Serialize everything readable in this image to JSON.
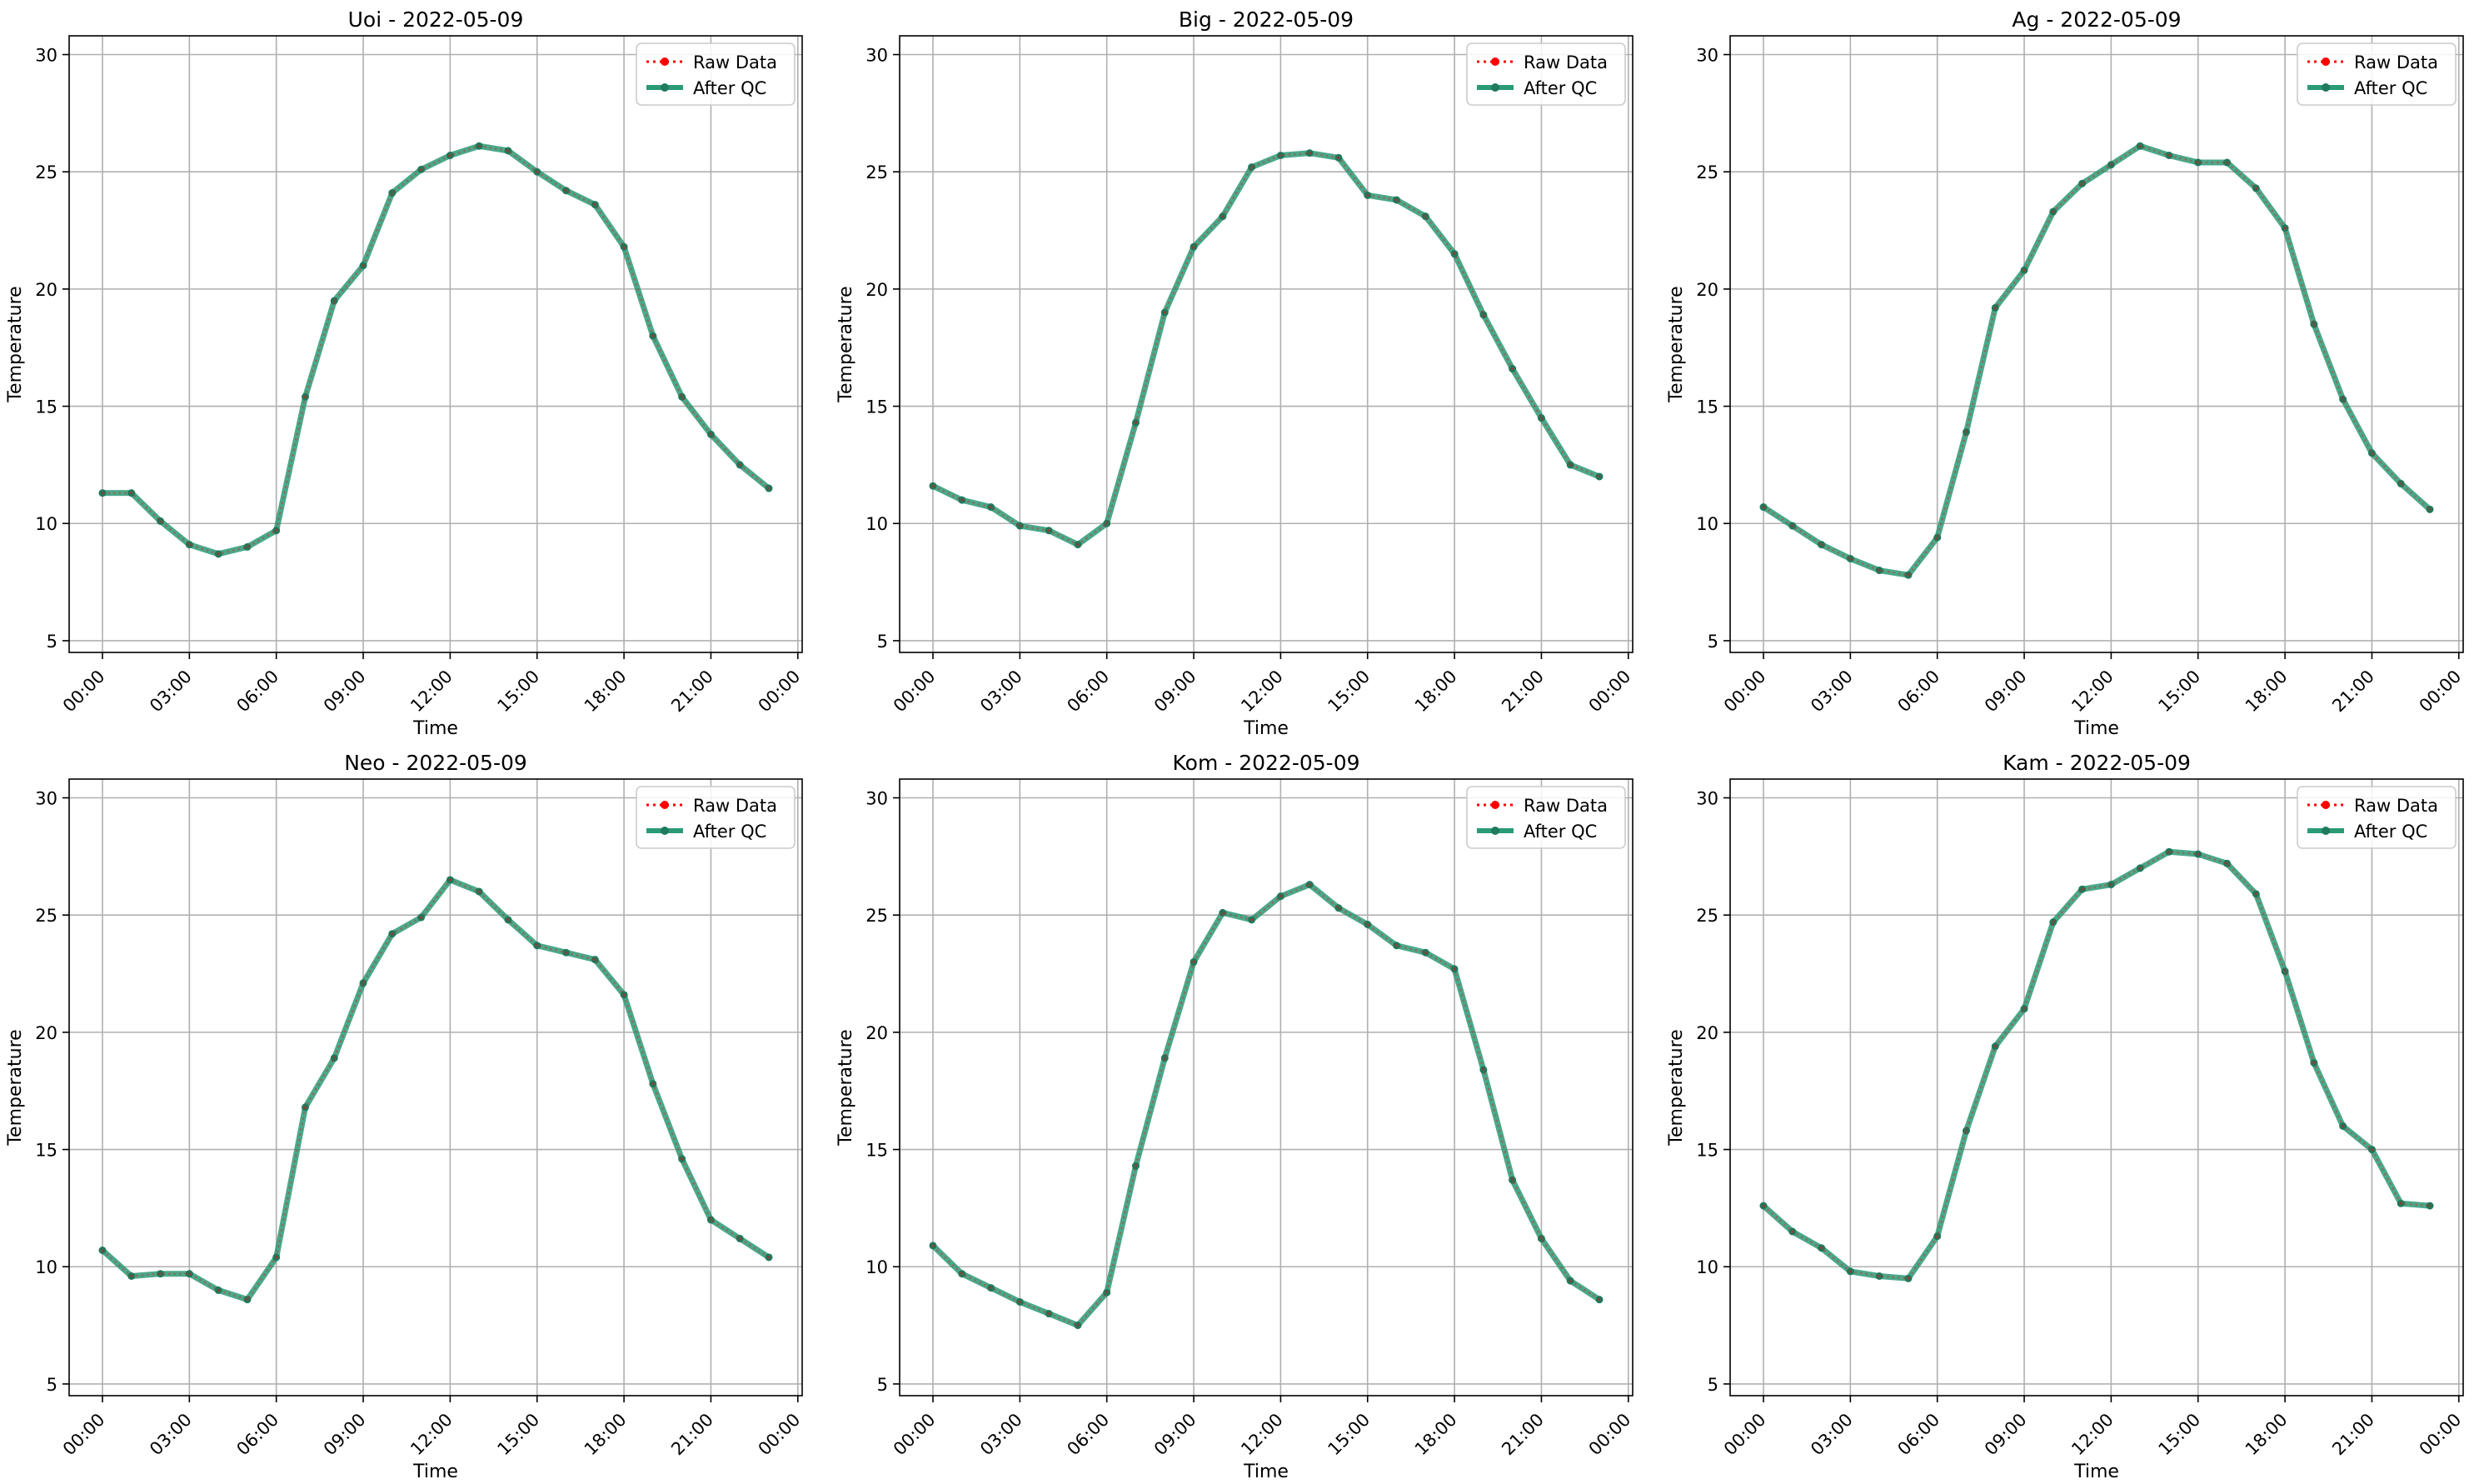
{
  "legend": {
    "raw_label": "Raw Data",
    "qc_label": "After QC",
    "placement": "upper right"
  },
  "colors": {
    "raw": "#ff0000",
    "qc": "#2a9a77",
    "qc_marker": "#1f7a5e",
    "grid": "#b0b0b0",
    "axes": "#000000"
  },
  "chart_data": [
    {
      "type": "line",
      "title": "Uoi - 2022-05-09",
      "xlabel": "Time",
      "ylabel": "Temperature",
      "ylim": [
        4.5,
        30.8
      ],
      "yticks": [
        5,
        10,
        15,
        20,
        25,
        30
      ],
      "xtick_labels": [
        "00:00",
        "03:00",
        "06:00",
        "09:00",
        "12:00",
        "15:00",
        "18:00",
        "21:00",
        "00:00"
      ],
      "grid": true,
      "x": [
        "00:00",
        "01:00",
        "02:00",
        "03:00",
        "04:00",
        "05:00",
        "06:00",
        "07:00",
        "08:00",
        "09:00",
        "10:00",
        "11:00",
        "12:00",
        "13:00",
        "14:00",
        "15:00",
        "16:00",
        "17:00",
        "18:00",
        "19:00",
        "20:00",
        "21:00",
        "22:00",
        "23:00"
      ],
      "series": [
        {
          "name": "Raw Data",
          "values": [
            11.3,
            11.3,
            10.1,
            9.1,
            8.7,
            9.0,
            9.7,
            15.4,
            19.5,
            21.0,
            24.1,
            25.1,
            25.7,
            26.1,
            25.9,
            25.0,
            24.2,
            23.6,
            21.8,
            18.0,
            15.4,
            13.8,
            12.5,
            11.5
          ]
        },
        {
          "name": "After QC",
          "values": [
            11.3,
            11.3,
            10.1,
            9.1,
            8.7,
            9.0,
            9.7,
            15.4,
            19.5,
            21.0,
            24.1,
            25.1,
            25.7,
            26.1,
            25.9,
            25.0,
            24.2,
            23.6,
            21.8,
            18.0,
            15.4,
            13.8,
            12.5,
            11.5
          ]
        }
      ]
    },
    {
      "type": "line",
      "title": "Big - 2022-05-09",
      "xlabel": "Time",
      "ylabel": "Temperature",
      "ylim": [
        4.5,
        30.8
      ],
      "yticks": [
        5,
        10,
        15,
        20,
        25,
        30
      ],
      "xtick_labels": [
        "00:00",
        "03:00",
        "06:00",
        "09:00",
        "12:00",
        "15:00",
        "18:00",
        "21:00",
        "00:00"
      ],
      "grid": true,
      "x": [
        "00:00",
        "01:00",
        "02:00",
        "03:00",
        "04:00",
        "05:00",
        "06:00",
        "07:00",
        "08:00",
        "09:00",
        "10:00",
        "11:00",
        "12:00",
        "13:00",
        "14:00",
        "15:00",
        "16:00",
        "17:00",
        "18:00",
        "19:00",
        "20:00",
        "21:00",
        "22:00",
        "23:00"
      ],
      "series": [
        {
          "name": "Raw Data",
          "values": [
            11.6,
            11.0,
            10.7,
            9.9,
            9.7,
            9.1,
            10.0,
            14.3,
            19.0,
            21.8,
            23.1,
            25.2,
            25.7,
            25.8,
            25.6,
            24.0,
            23.8,
            23.1,
            21.5,
            18.9,
            16.6,
            14.5,
            12.5,
            12.0
          ]
        },
        {
          "name": "After QC",
          "values": [
            11.6,
            11.0,
            10.7,
            9.9,
            9.7,
            9.1,
            10.0,
            14.3,
            19.0,
            21.8,
            23.1,
            25.2,
            25.7,
            25.8,
            25.6,
            24.0,
            23.8,
            23.1,
            21.5,
            18.9,
            16.6,
            14.5,
            12.5,
            12.0
          ]
        }
      ]
    },
    {
      "type": "line",
      "title": "Ag - 2022-05-09",
      "xlabel": "Time",
      "ylabel": "Temperature",
      "ylim": [
        4.5,
        30.8
      ],
      "yticks": [
        5,
        10,
        15,
        20,
        25,
        30
      ],
      "xtick_labels": [
        "00:00",
        "03:00",
        "06:00",
        "09:00",
        "12:00",
        "15:00",
        "18:00",
        "21:00",
        "00:00"
      ],
      "grid": true,
      "x": [
        "00:00",
        "01:00",
        "02:00",
        "03:00",
        "04:00",
        "05:00",
        "06:00",
        "07:00",
        "08:00",
        "09:00",
        "10:00",
        "11:00",
        "12:00",
        "13:00",
        "14:00",
        "15:00",
        "16:00",
        "17:00",
        "18:00",
        "19:00",
        "20:00",
        "21:00",
        "22:00",
        "23:00"
      ],
      "series": [
        {
          "name": "Raw Data",
          "values": [
            10.7,
            9.9,
            9.1,
            8.5,
            8.0,
            7.8,
            9.4,
            13.9,
            19.2,
            20.8,
            23.3,
            24.5,
            25.3,
            26.1,
            25.7,
            25.4,
            25.4,
            24.3,
            22.6,
            18.5,
            15.3,
            13.0,
            11.7,
            10.6
          ]
        },
        {
          "name": "After QC",
          "values": [
            10.7,
            9.9,
            9.1,
            8.5,
            8.0,
            7.8,
            9.4,
            13.9,
            19.2,
            20.8,
            23.3,
            24.5,
            25.3,
            26.1,
            25.7,
            25.4,
            25.4,
            24.3,
            22.6,
            18.5,
            15.3,
            13.0,
            11.7,
            10.6
          ]
        }
      ]
    },
    {
      "type": "line",
      "title": "Neo - 2022-05-09",
      "xlabel": "Time",
      "ylabel": "Temperature",
      "ylim": [
        4.5,
        30.8
      ],
      "yticks": [
        5,
        10,
        15,
        20,
        25,
        30
      ],
      "xtick_labels": [
        "00:00",
        "03:00",
        "06:00",
        "09:00",
        "12:00",
        "15:00",
        "18:00",
        "21:00",
        "00:00"
      ],
      "grid": true,
      "x": [
        "00:00",
        "01:00",
        "02:00",
        "03:00",
        "04:00",
        "05:00",
        "06:00",
        "07:00",
        "08:00",
        "09:00",
        "10:00",
        "11:00",
        "12:00",
        "13:00",
        "14:00",
        "15:00",
        "16:00",
        "17:00",
        "18:00",
        "19:00",
        "20:00",
        "21:00",
        "22:00",
        "23:00"
      ],
      "series": [
        {
          "name": "Raw Data",
          "values": [
            10.7,
            9.6,
            9.7,
            9.7,
            9.0,
            8.6,
            10.4,
            16.8,
            18.9,
            22.1,
            24.2,
            24.9,
            26.5,
            26.0,
            24.8,
            23.7,
            23.4,
            23.1,
            21.6,
            17.8,
            14.6,
            12.0,
            11.2,
            10.4
          ]
        },
        {
          "name": "After QC",
          "values": [
            10.7,
            9.6,
            9.7,
            9.7,
            9.0,
            8.6,
            10.4,
            16.8,
            18.9,
            22.1,
            24.2,
            24.9,
            26.5,
            26.0,
            24.8,
            23.7,
            23.4,
            23.1,
            21.6,
            17.8,
            14.6,
            12.0,
            11.2,
            10.4
          ]
        }
      ]
    },
    {
      "type": "line",
      "title": "Kom - 2022-05-09",
      "xlabel": "Time",
      "ylabel": "Temperature",
      "ylim": [
        4.5,
        30.8
      ],
      "yticks": [
        5,
        10,
        15,
        20,
        25,
        30
      ],
      "xtick_labels": [
        "00:00",
        "03:00",
        "06:00",
        "09:00",
        "12:00",
        "15:00",
        "18:00",
        "21:00",
        "00:00"
      ],
      "grid": true,
      "x": [
        "00:00",
        "01:00",
        "02:00",
        "03:00",
        "04:00",
        "05:00",
        "06:00",
        "07:00",
        "08:00",
        "09:00",
        "10:00",
        "11:00",
        "12:00",
        "13:00",
        "14:00",
        "15:00",
        "16:00",
        "17:00",
        "18:00",
        "19:00",
        "20:00",
        "21:00",
        "22:00",
        "23:00"
      ],
      "series": [
        {
          "name": "Raw Data",
          "values": [
            10.9,
            9.7,
            9.1,
            8.5,
            8.0,
            7.5,
            8.9,
            14.3,
            18.9,
            23.0,
            25.1,
            24.8,
            25.8,
            26.3,
            25.3,
            24.6,
            23.7,
            23.4,
            22.7,
            18.4,
            13.7,
            11.2,
            9.4,
            8.6
          ]
        },
        {
          "name": "After QC",
          "values": [
            10.9,
            9.7,
            9.1,
            8.5,
            8.0,
            7.5,
            8.9,
            14.3,
            18.9,
            23.0,
            25.1,
            24.8,
            25.8,
            26.3,
            25.3,
            24.6,
            23.7,
            23.4,
            22.7,
            18.4,
            13.7,
            11.2,
            9.4,
            8.6
          ]
        }
      ]
    },
    {
      "type": "line",
      "title": "Kam - 2022-05-09",
      "xlabel": "Time",
      "ylabel": "Temperature",
      "ylim": [
        4.5,
        30.8
      ],
      "yticks": [
        5,
        10,
        15,
        20,
        25,
        30
      ],
      "xtick_labels": [
        "00:00",
        "03:00",
        "06:00",
        "09:00",
        "12:00",
        "15:00",
        "18:00",
        "21:00",
        "00:00"
      ],
      "grid": true,
      "x": [
        "00:00",
        "01:00",
        "02:00",
        "03:00",
        "04:00",
        "05:00",
        "06:00",
        "07:00",
        "08:00",
        "09:00",
        "10:00",
        "11:00",
        "12:00",
        "13:00",
        "14:00",
        "15:00",
        "16:00",
        "17:00",
        "18:00",
        "19:00",
        "20:00",
        "21:00",
        "22:00",
        "23:00"
      ],
      "series": [
        {
          "name": "Raw Data",
          "values": [
            12.6,
            11.5,
            10.8,
            9.8,
            9.6,
            9.5,
            11.3,
            15.8,
            19.4,
            21.0,
            24.7,
            26.1,
            26.3,
            27.0,
            27.7,
            27.6,
            27.2,
            25.9,
            22.6,
            18.7,
            16.0,
            15.0,
            12.7,
            12.6
          ]
        },
        {
          "name": "After QC",
          "values": [
            12.6,
            11.5,
            10.8,
            9.8,
            9.6,
            9.5,
            11.3,
            15.8,
            19.4,
            21.0,
            24.7,
            26.1,
            26.3,
            27.0,
            27.7,
            27.6,
            27.2,
            25.9,
            22.6,
            18.7,
            16.0,
            15.0,
            12.7,
            12.6
          ]
        }
      ]
    }
  ]
}
